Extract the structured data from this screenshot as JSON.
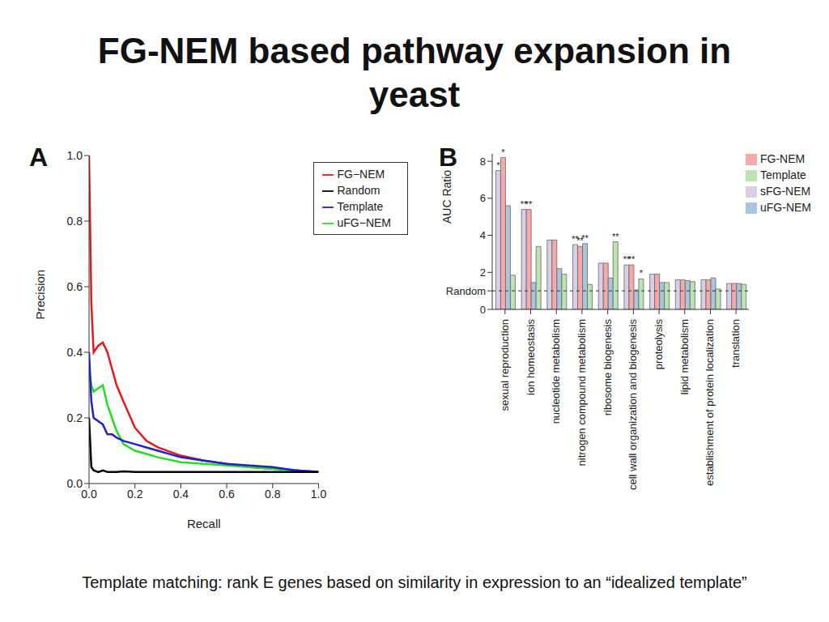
{
  "title": "FG-NEM based pathway expansion in yeast",
  "footnote": "Template matching: rank E genes based on similarity in expression to an “idealized template”",
  "chart_data": [
    {
      "panel": "A",
      "type": "line",
      "x_label": "Recall",
      "y_label": "Precision",
      "x": [
        0,
        0.01,
        0.02,
        0.04,
        0.06,
        0.08,
        0.1,
        0.12,
        0.15,
        0.2,
        0.25,
        0.3,
        0.4,
        0.5,
        0.6,
        0.7,
        0.8,
        0.9,
        1.0
      ],
      "series": [
        {
          "name": "FG−NEM",
          "color": "#e31a1c",
          "values": [
            1.0,
            0.55,
            0.4,
            0.42,
            0.43,
            0.4,
            0.35,
            0.3,
            0.25,
            0.17,
            0.13,
            0.11,
            0.085,
            0.07,
            0.06,
            0.05,
            0.045,
            0.04,
            0.035
          ]
        },
        {
          "name": "uFG−NEM",
          "color": "#22dd22",
          "values": [
            0.35,
            0.3,
            0.28,
            0.29,
            0.3,
            0.24,
            0.2,
            0.16,
            0.12,
            0.1,
            0.09,
            0.08,
            0.065,
            0.06,
            0.055,
            0.05,
            0.045,
            0.04,
            0.035
          ]
        },
        {
          "name": "Template",
          "color": "#1f1fcc",
          "values": [
            0.4,
            0.25,
            0.2,
            0.19,
            0.18,
            0.15,
            0.15,
            0.14,
            0.13,
            0.12,
            0.11,
            0.1,
            0.08,
            0.07,
            0.06,
            0.055,
            0.05,
            0.04,
            0.035
          ]
        },
        {
          "name": "Random",
          "color": "#000000",
          "values": [
            0.2,
            0.05,
            0.04,
            0.035,
            0.04,
            0.035,
            0.035,
            0.035,
            0.037,
            0.035,
            0.035,
            0.035,
            0.035,
            0.035,
            0.035,
            0.035,
            0.035,
            0.035,
            0.035
          ]
        }
      ],
      "xlim": [
        0,
        1
      ],
      "xticks": [
        {
          "value": 0,
          "label": "0.0"
        },
        0.2,
        0.4,
        0.6,
        0.8,
        {
          "value": 1,
          "label": "1.0"
        }
      ],
      "ylim": [
        0,
        1
      ],
      "yticks": [
        {
          "value": 0,
          "label": "0.0"
        },
        0.2,
        0.4,
        0.6,
        0.8,
        {
          "value": 1,
          "label": "1.0"
        }
      ],
      "legend": "top-right",
      "grid": false
    },
    {
      "panel": "B",
      "type": "bar",
      "y_label": "AUC Ratio",
      "categories": [
        "sexual reproduction",
        "ion homeostasis",
        "nucleotide metabolism",
        "nitrogen compound metabolism",
        "ribosome biogenesis",
        "cell wall organization and biogenesis",
        "proteolysis",
        "lipid metabolism",
        "establishment of protein localization",
        "translation"
      ],
      "series": [
        {
          "name": "sFG-NEM",
          "color": "#d8cfe6",
          "values": [
            7.5,
            5.4,
            3.75,
            3.5,
            2.5,
            2.4,
            1.9,
            1.6,
            1.6,
            1.4
          ],
          "annotations": [
            "*",
            "**",
            null,
            "**",
            null,
            "**",
            null,
            null,
            null,
            null
          ]
        },
        {
          "name": "FG-NEM",
          "color": "#f4aaa8",
          "values": [
            8.2,
            5.4,
            3.75,
            3.4,
            2.5,
            2.4,
            1.9,
            1.6,
            1.6,
            1.4
          ],
          "annotations": [
            "*",
            "**",
            null,
            "**",
            null,
            "**",
            null,
            null,
            null,
            null
          ]
        },
        {
          "name": "uFG-NEM",
          "color": "#aac6de",
          "values": [
            5.6,
            1.45,
            2.2,
            3.55,
            1.7,
            1.05,
            1.45,
            1.55,
            1.7,
            1.4
          ],
          "annotations": [
            null,
            null,
            null,
            "**",
            null,
            null,
            null,
            null,
            null,
            null
          ]
        },
        {
          "name": "Template",
          "color": "#bce3b4",
          "values": [
            1.85,
            3.4,
            1.9,
            1.35,
            3.65,
            1.65,
            1.45,
            1.5,
            1.1,
            1.35
          ],
          "annotations": [
            null,
            null,
            null,
            null,
            "**",
            "*",
            null,
            null,
            null,
            null
          ]
        }
      ],
      "ylim": [
        0,
        8.4
      ],
      "yticks": [
        0,
        {
          "value": 1,
          "label": "Random"
        },
        2,
        4,
        6,
        8
      ],
      "legend": "top-right",
      "grid": false
    }
  ]
}
